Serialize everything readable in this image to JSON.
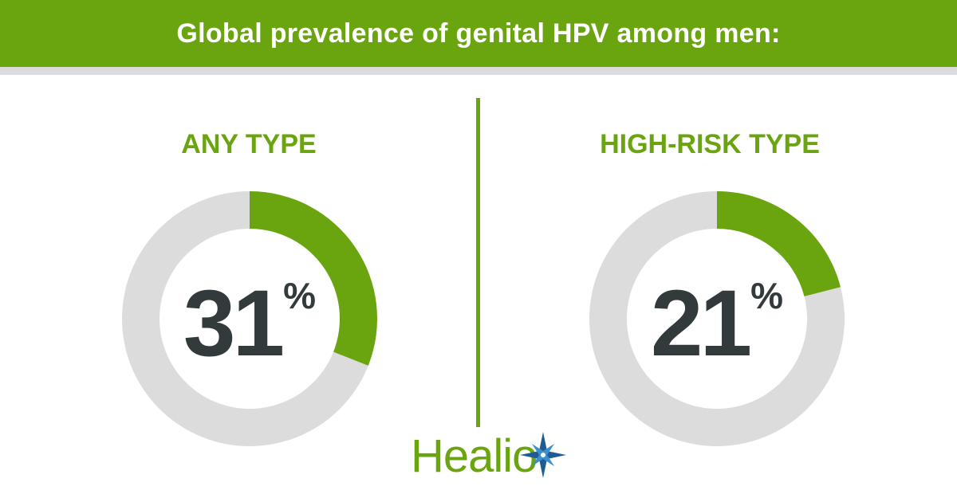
{
  "header": {
    "title": "Global prevalence of genital HPV among men:"
  },
  "colors": {
    "accent": "#6aa40f",
    "ring_bg": "#dcdcdc",
    "value_text": "#333a3c",
    "star": "#1f5c93"
  },
  "chart_data": [
    {
      "type": "pie",
      "title": "ANY TYPE",
      "value": 31,
      "value_label": "31",
      "unit": "%",
      "categories": [
        "ANY TYPE",
        ""
      ],
      "values": [
        31,
        69
      ]
    },
    {
      "type": "pie",
      "title": "HIGH-RISK TYPE",
      "value": 21,
      "value_label": "21",
      "unit": "%",
      "categories": [
        "HIGH-RISK TYPE",
        ""
      ],
      "values": [
        21,
        79
      ]
    }
  ],
  "logo": {
    "text": "Healio",
    "icon": "star-icon"
  }
}
